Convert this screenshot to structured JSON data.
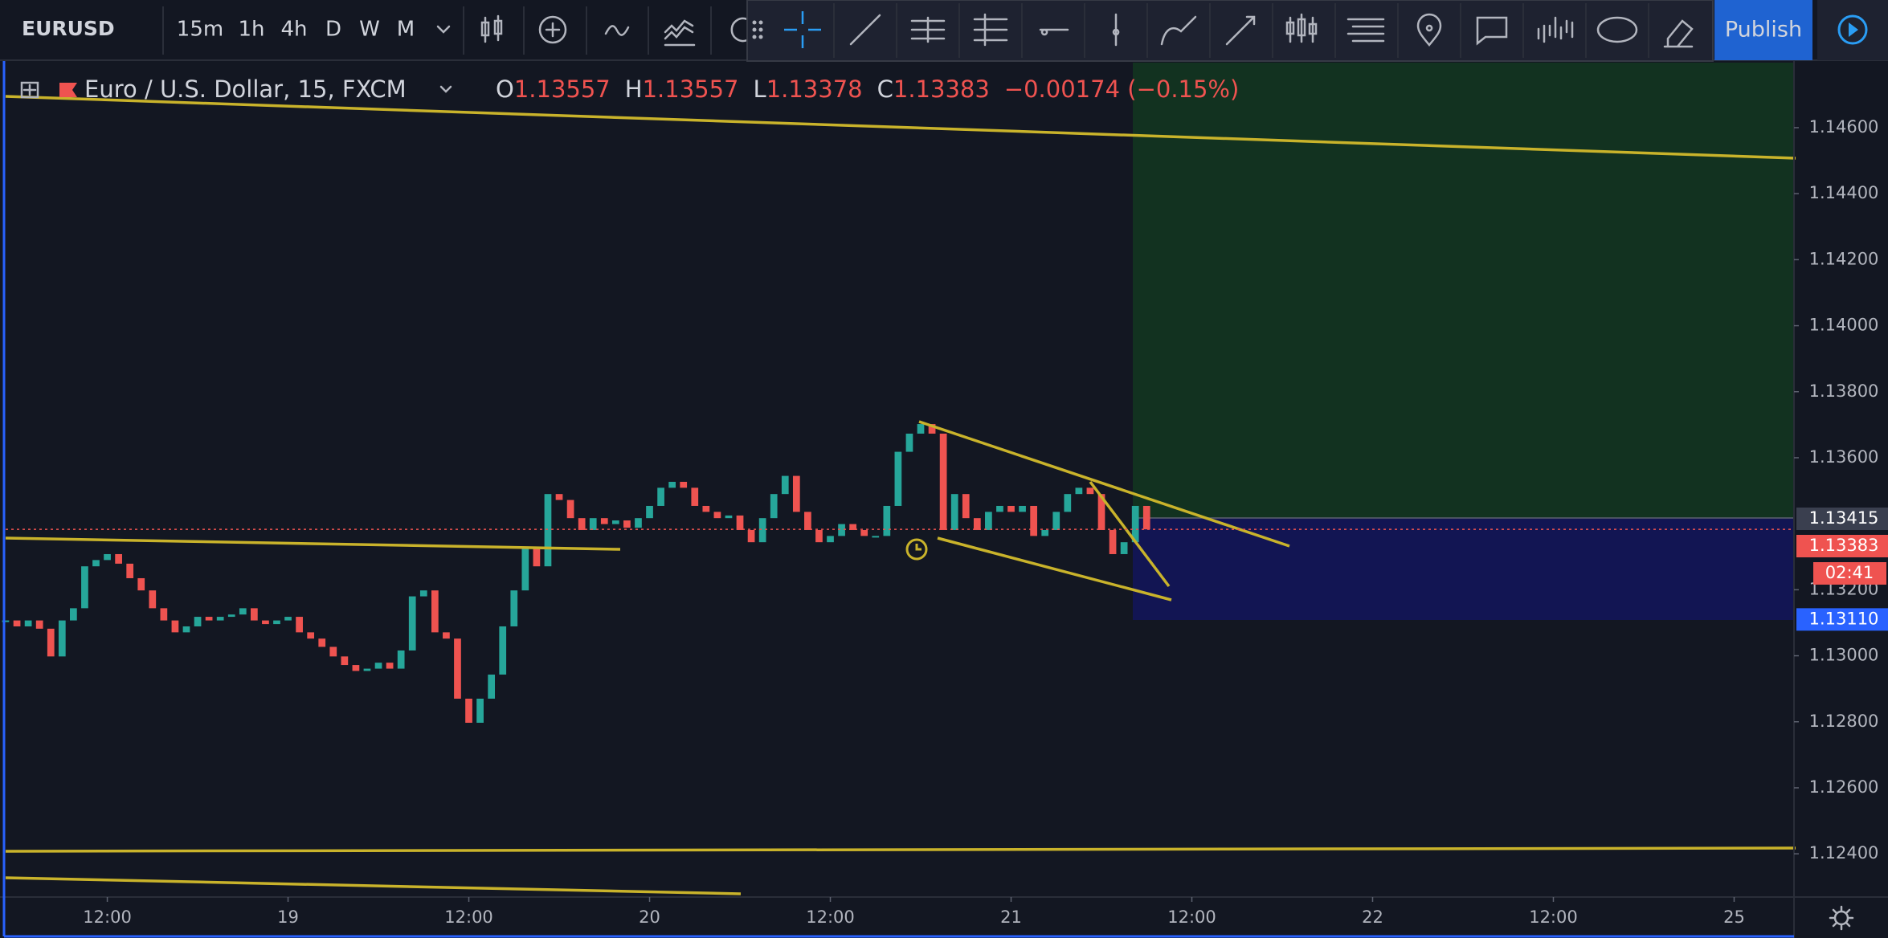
{
  "toolbar": {
    "symbol": "EURUSD",
    "intervals": [
      "15m",
      "1h",
      "4h",
      "D",
      "W",
      "M"
    ],
    "publish": "Publish"
  },
  "chart_data": {
    "type": "candlestick",
    "title": "Euro / U.S. Dollar, 15, FXCM",
    "ohlc": [
      {
        "key": "O",
        "value": 1.13557
      },
      {
        "key": "H",
        "value": 1.13557
      },
      {
        "key": "L",
        "value": 1.13378
      },
      {
        "key": "C",
        "value": 1.13383
      }
    ],
    "change": "−0.00174 (−0.15%)",
    "up_color": "#26a69a",
    "down_color": "#ef5350",
    "values": [
      1.13107,
      1.13089,
      1.13107,
      1.13082,
      1.12998,
      1.13107,
      1.13144,
      1.13271,
      1.1329,
      1.13308,
      1.13279,
      1.13235,
      1.13198,
      1.13144,
      1.13107,
      1.13071,
      1.13089,
      1.13118,
      1.13107,
      1.13118,
      1.13125,
      1.13144,
      1.13107,
      1.13096,
      1.13107,
      1.13118,
      1.13071,
      1.13052,
      1.13027,
      1.12998,
      1.12972,
      1.12954,
      1.12961,
      1.12979,
      1.12961,
      1.13016,
      1.1318,
      1.13198,
      1.13071,
      1.13052,
      1.1287,
      1.12797,
      1.1287,
      1.12943,
      1.13089,
      1.13198,
      1.13326,
      1.13271,
      1.1349,
      1.13472,
      1.13417,
      1.13381,
      1.13417,
      1.13399,
      1.1341,
      1.13388,
      1.13417,
      1.13454,
      1.13509,
      1.13527,
      1.13509,
      1.13454,
      1.13436,
      1.13417,
      1.13425,
      1.13381,
      1.13344,
      1.13417,
      1.1349,
      1.13545,
      1.13436,
      1.13381,
      1.13344,
      1.13363,
      1.13399,
      1.13381,
      1.13363,
      1.13363,
      1.13454,
      1.13618,
      1.13673,
      1.13702,
      1.13673,
      1.13381,
      1.1349,
      1.13417,
      1.13381,
      1.13436,
      1.13454,
      1.13436,
      1.13454,
      1.13363,
      1.13381,
      1.13436,
      1.1349,
      1.13509,
      1.1349,
      1.13381,
      1.13308,
      1.13344,
      1.13454,
      1.13383
    ],
    "xlim": [
      0,
      158.3
    ],
    "xticks": [
      {
        "value": 9,
        "label": "12:00"
      },
      {
        "value": 25,
        "label": "19"
      },
      {
        "value": 41,
        "label": "12:00"
      },
      {
        "value": 57,
        "label": "20"
      },
      {
        "value": 73,
        "label": "12:00"
      },
      {
        "value": 89,
        "label": "21"
      },
      {
        "value": 105,
        "label": "12:00"
      },
      {
        "value": 121,
        "label": "22"
      },
      {
        "value": 137,
        "label": "12:00"
      },
      {
        "value": 153,
        "label": "25"
      }
    ],
    "ylim": [
      1.12269,
      1.14797
    ],
    "yticks": [
      {
        "value": 1.124,
        "label": "1.12400"
      },
      {
        "value": 1.126,
        "label": "1.12600"
      },
      {
        "value": 1.128,
        "label": "1.12800"
      },
      {
        "value": 1.13,
        "label": "1.13000"
      },
      {
        "value": 1.132,
        "label": "1.13200"
      },
      {
        "value": 1.136,
        "label": "1.13600"
      },
      {
        "value": 1.138,
        "label": "1.13800"
      },
      {
        "value": 1.14,
        "label": "1.14000"
      },
      {
        "value": 1.142,
        "label": "1.14200"
      },
      {
        "value": 1.144,
        "label": "1.14400"
      },
      {
        "value": 1.146,
        "label": "1.14600"
      }
    ],
    "price_tags": [
      {
        "value": 1.13415,
        "color": "#3a3f4f"
      },
      {
        "value": 1.13383,
        "color": "#ef5350"
      },
      {
        "value": 1.1311,
        "label": "1.13110",
        "color": "#2962ff"
      }
    ],
    "countdown": "02:41"
  }
}
